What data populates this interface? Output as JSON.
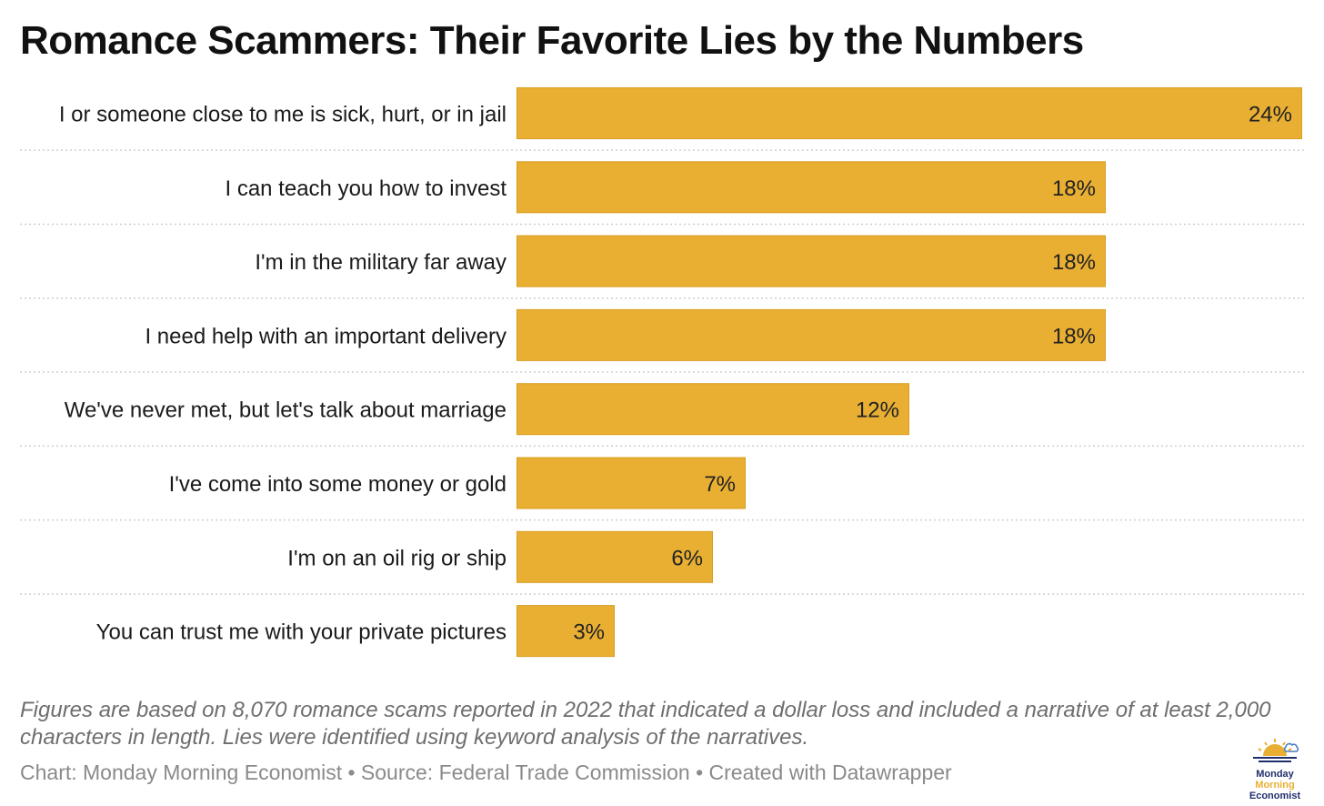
{
  "title": "Romance Scammers: Their Favorite Lies by the Numbers",
  "chart_data": {
    "type": "bar",
    "orientation": "horizontal",
    "categories": [
      "I or someone close to me is sick, hurt, or in jail",
      "I can teach you how to invest",
      "I'm in the military far away",
      "I need help with an important delivery",
      "We've never met, but let's talk about marriage",
      "I've come into some money or gold",
      "I'm on an oil rig or ship",
      "You can trust me with your private pictures"
    ],
    "values": [
      24,
      18,
      18,
      18,
      12,
      7,
      6,
      3
    ],
    "value_labels": [
      "24%",
      "18%",
      "18%",
      "18%",
      "12%",
      "7%",
      "6%",
      "3%"
    ],
    "unit": "%",
    "xlim": [
      0,
      24
    ],
    "bar_color": "#e8af33",
    "bar_border_color": "#d99c1f",
    "separator_color": "#cfcfcf",
    "grid": false
  },
  "footer": {
    "note": "Figures are based on 8,070 romance scams reported in 2022 that indicated a dollar loss and included a narrative of at least 2,000 characters in length. Lies were identified using keyword analysis of the narratives.",
    "credit": "Chart: Monday Morning Economist • Source: Federal Trade Commission • Created with Datawrapper"
  },
  "logo": {
    "line1": "Monday",
    "line2": "Morning",
    "line3": "Economist",
    "navy": "#1f2f6b",
    "gold": "#e8af33",
    "sky": "#4a7fc1"
  }
}
